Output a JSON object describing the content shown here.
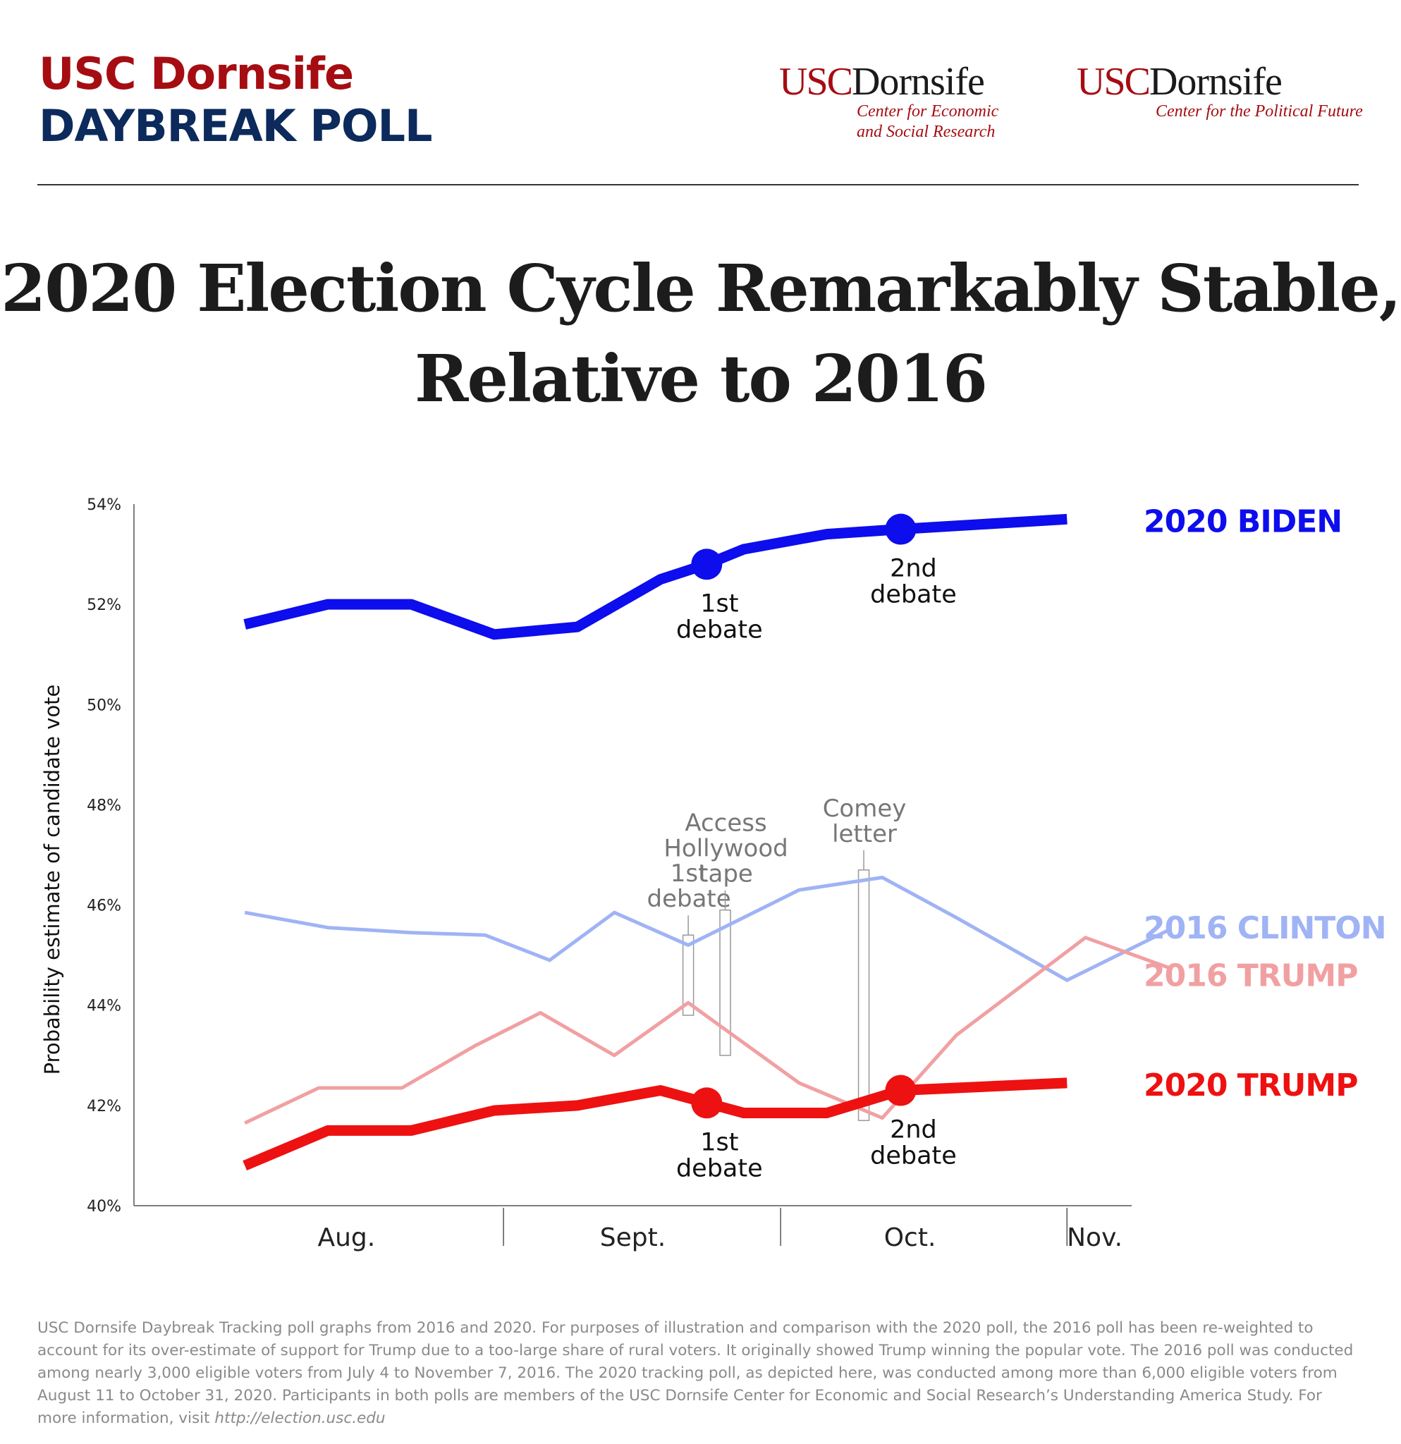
{
  "brand": {
    "line1": "USC Dornsife",
    "line2": "DAYBREAK POLL"
  },
  "logos": [
    {
      "usc": "USC",
      "name": "Dornsife",
      "sub1": "Center for Economic",
      "sub2": "and Social Research"
    },
    {
      "usc": "USC",
      "name": "Dornsife",
      "sub1": "Center for the Political Future",
      "sub2": ""
    }
  ],
  "title": {
    "line1": "2020 Election Cycle Remarkably Stable,",
    "line2": "Relative to 2016"
  },
  "chart_data": {
    "type": "line",
    "title": "2020 Election Cycle Remarkably Stable, Relative to 2016",
    "ylabel": "Probability estimate of candidate vote",
    "xlabel": "",
    "ylim": [
      40,
      54
    ],
    "yticks": [
      {
        "value": 40,
        "label": "40%"
      },
      {
        "value": 42,
        "label": "42%"
      },
      {
        "value": 44,
        "label": "44%"
      },
      {
        "value": 46,
        "label": "46%"
      },
      {
        "value": 48,
        "label": "48%"
      },
      {
        "value": 50,
        "label": "50%"
      },
      {
        "value": 52,
        "label": "52%"
      },
      {
        "value": 54,
        "label": "54%"
      }
    ],
    "x_range": [
      "Jul 23",
      "Nov 8"
    ],
    "month_labels": [
      {
        "label": "Aug.",
        "x": "Aug 15"
      },
      {
        "label": "Sept.",
        "x": "Sep 15"
      },
      {
        "label": "Oct.",
        "x": "Oct 15"
      },
      {
        "label": "Nov.",
        "x": "Nov 4"
      }
    ],
    "month_dividers": [
      "Sep 1",
      "Oct 1",
      "Nov 1"
    ],
    "grid": false,
    "legend": "right (labels at line ends)",
    "series": [
      {
        "name": "2020 BIDEN",
        "color": "#0d0ded",
        "width": 15,
        "points": [
          [
            "Aug 4",
            51.6
          ],
          [
            "Aug 13",
            52.0
          ],
          [
            "Aug 22",
            52.0
          ],
          [
            "Aug 31",
            51.4
          ],
          [
            "Sep 9",
            51.55
          ],
          [
            "Sep 18",
            52.5
          ],
          [
            "Sep 23",
            52.8
          ],
          [
            "Sep 27",
            53.1
          ],
          [
            "Oct 6",
            53.4
          ],
          [
            "Oct 14",
            53.5
          ],
          [
            "Nov 1",
            53.7
          ]
        ],
        "markers": [
          {
            "x": "Sep 23",
            "y": 52.8,
            "label": [
              "1st",
              "debate"
            ],
            "label_pos": "below"
          },
          {
            "x": "Oct 14",
            "y": 53.5,
            "label": [
              "2nd",
              "debate"
            ],
            "label_pos": "below"
          }
        ]
      },
      {
        "name": "2016 CLINTON",
        "color": "#9fb3f5",
        "width": 5,
        "points": [
          [
            "Aug 4",
            45.85
          ],
          [
            "Aug 13",
            45.55
          ],
          [
            "Aug 22",
            45.45
          ],
          [
            "Aug 30",
            45.4
          ],
          [
            "Sep 6",
            44.9
          ],
          [
            "Sep 13",
            45.85
          ],
          [
            "Sep 21",
            45.2
          ],
          [
            "Oct 3",
            46.3
          ],
          [
            "Oct 12",
            46.55
          ],
          [
            "Oct 20",
            45.75
          ],
          [
            "Nov 1",
            44.5
          ],
          [
            "Nov 12",
            45.5
          ]
        ]
      },
      {
        "name": "2016 TRUMP",
        "color": "#f1a0a2",
        "width": 5,
        "points": [
          [
            "Aug 4",
            41.65
          ],
          [
            "Aug 12",
            42.35
          ],
          [
            "Aug 21",
            42.35
          ],
          [
            "Aug 29",
            43.2
          ],
          [
            "Sep 5",
            43.85
          ],
          [
            "Sep 13",
            43.0
          ],
          [
            "Sep 21",
            44.05
          ],
          [
            "Oct 3",
            42.45
          ],
          [
            "Oct 12",
            41.75
          ],
          [
            "Oct 20",
            43.4
          ],
          [
            "Nov 3",
            45.35
          ],
          [
            "Nov 12",
            44.75
          ]
        ]
      },
      {
        "name": "2020 TRUMP",
        "color": "#ee1111",
        "width": 15,
        "points": [
          [
            "Aug 4",
            40.8
          ],
          [
            "Aug 13",
            41.5
          ],
          [
            "Aug 22",
            41.5
          ],
          [
            "Aug 31",
            41.9
          ],
          [
            "Sep 9",
            42.0
          ],
          [
            "Sep 18",
            42.3
          ],
          [
            "Sep 23",
            42.05
          ],
          [
            "Sep 27",
            41.85
          ],
          [
            "Oct 6",
            41.85
          ],
          [
            "Oct 14",
            42.3
          ],
          [
            "Nov 1",
            42.45
          ]
        ],
        "markers": [
          {
            "x": "Sep 23",
            "y": 42.05,
            "label": [
              "1st",
              "debate"
            ],
            "label_pos": "below"
          },
          {
            "x": "Oct 14",
            "y": 42.3,
            "label": [
              "2nd",
              "debate"
            ],
            "label_pos": "below"
          }
        ]
      }
    ],
    "annotations_2016": [
      {
        "x": "Sep 21",
        "y_range": [
          43.8,
          45.4
        ],
        "label": [
          "1st",
          "debate"
        ]
      },
      {
        "x": "Sep 25",
        "y_range": [
          43.0,
          45.9
        ],
        "label": [
          "Access",
          "Hollywood",
          "tape"
        ]
      },
      {
        "x": "Oct 10",
        "y_range": [
          41.7,
          46.7
        ],
        "label": [
          "Comey",
          "letter"
        ]
      }
    ]
  },
  "footnote": {
    "text": "USC Dornsife Daybreak Tracking poll graphs from 2016 and 2020. For purposes of illustration and comparison with the 2020 poll, the 2016 poll has been re-weighted to account for its over-estimate of support for Trump due to a too-large share of rural voters. It originally showed Trump winning the popular vote. The 2016 poll was conducted among nearly 3,000 eligible voters from July 4 to November 7, 2016. The 2020 tracking poll, as depicted here, was conducted among more than 6,000 eligible voters from August 11 to October 31, 2020. Participants in both polls are members of the USC Dornsife Center for Economic and Social Research’s Understanding America Study. For more information, visit ",
    "url": "http://election.usc.edu"
  }
}
